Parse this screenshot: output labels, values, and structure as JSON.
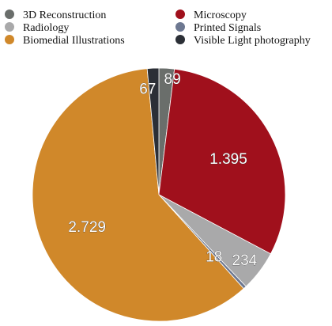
{
  "chart_data": {
    "type": "pie",
    "title": "",
    "series": [
      {
        "name": "3D Reconstruction",
        "value": 89,
        "label": "89",
        "color": "#6a6e6b"
      },
      {
        "name": "Microscopy",
        "value": 1395,
        "label": "1.395",
        "color": "#a0101c"
      },
      {
        "name": "Radiology",
        "value": 234,
        "label": "234",
        "color": "#a9a9aa"
      },
      {
        "name": "Printed Signals",
        "value": 18,
        "label": "18",
        "color": "#6d7891"
      },
      {
        "name": "Biomedial Illustrations",
        "value": 2729,
        "label": "2.729",
        "color": "#d0882a"
      },
      {
        "name": "Visible Light photography",
        "value": 67,
        "label": "67",
        "color": "#2b2f36"
      }
    ],
    "legend_position": "top",
    "legend_columns": 2
  }
}
